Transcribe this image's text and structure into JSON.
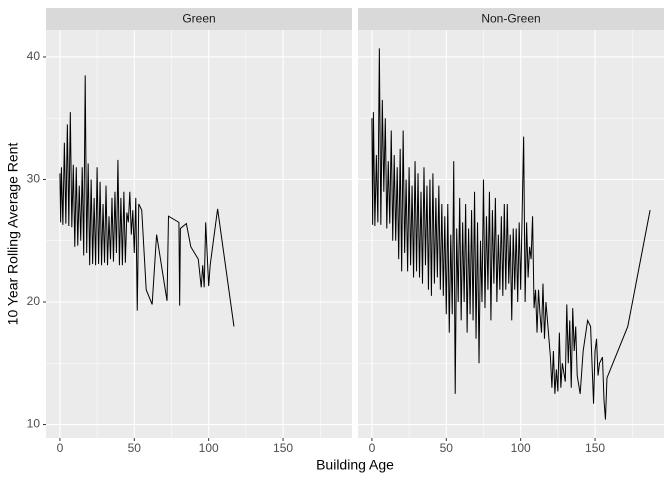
{
  "chart_data": {
    "type": "line",
    "x_label": "Building Age",
    "y_label": "10 Year Rolling Average Rent",
    "xlim": [
      -9.35,
      196.35
    ],
    "ylim": [
      8.9,
      42.2
    ],
    "xticks": [
      0,
      50,
      100,
      150
    ],
    "yticks": [
      10,
      20,
      30,
      40
    ],
    "x_minor_ticks": [
      25,
      75,
      125,
      175
    ],
    "y_minor_ticks": [
      15,
      25,
      35
    ],
    "grid": true,
    "color": "#000000",
    "panels": [
      {
        "title": "Green",
        "x": [
          0,
          0.5,
          1,
          2,
          3,
          4,
          5,
          6,
          7,
          8,
          9,
          10,
          11,
          12,
          13,
          14,
          15,
          16,
          17,
          18,
          19,
          20,
          21,
          22,
          23,
          24,
          25,
          26,
          27,
          28,
          29,
          30,
          31,
          32,
          33,
          34,
          35,
          36,
          37,
          38,
          39,
          40,
          41,
          42,
          43,
          44,
          45,
          46,
          47,
          48,
          49,
          50,
          51,
          52,
          53,
          55,
          58,
          62,
          65,
          72,
          73,
          80,
          80.5,
          81,
          85,
          88,
          93,
          95,
          96,
          97,
          98,
          100,
          101,
          106,
          117
        ],
        "values": [
          30.5,
          26.5,
          31,
          26.3,
          33,
          26.4,
          34.5,
          26.2,
          35.5,
          26.1,
          31.2,
          24.5,
          31,
          24.6,
          29.5,
          25,
          31,
          23.8,
          38.5,
          24,
          31.3,
          23,
          30,
          23.1,
          28.5,
          23,
          31,
          23.1,
          29.8,
          23,
          28,
          23.2,
          29.5,
          23,
          27,
          23.5,
          28.5,
          23.3,
          29,
          24,
          31.6,
          23,
          28.5,
          23,
          29,
          23.2,
          27.3,
          26.5,
          29,
          25.5,
          27.5,
          24,
          28.5,
          19.3,
          28,
          27.5,
          21,
          19.8,
          25.5,
          20.1,
          27,
          26.5,
          19.7,
          26,
          26.4,
          24.5,
          23.5,
          21.2,
          23,
          21.2,
          26.5,
          21.3,
          23,
          27.6,
          18
        ]
      },
      {
        "title": "Non-Green",
        "x": [
          0,
          0.5,
          1,
          2,
          3,
          4,
          5,
          6,
          7,
          8,
          9,
          10,
          11,
          12,
          13,
          14,
          15,
          16,
          17,
          18,
          19,
          20,
          21,
          22,
          23,
          24,
          25,
          26,
          27,
          28,
          29,
          30,
          31,
          32,
          33,
          34,
          35,
          36,
          37,
          38,
          39,
          40,
          41,
          42,
          43,
          44,
          45,
          46,
          47,
          48,
          49,
          50,
          51,
          52,
          53,
          54,
          55,
          56,
          57,
          58,
          59,
          60,
          61,
          62,
          63,
          64,
          65,
          66,
          67,
          68,
          69,
          70,
          71,
          72,
          73,
          74,
          75,
          76,
          77,
          78,
          79,
          80,
          81,
          82,
          83,
          84,
          85,
          86,
          87,
          88,
          89,
          90,
          91,
          92,
          93,
          94,
          95,
          96,
          97,
          98,
          99,
          100,
          102,
          103,
          104,
          105,
          106,
          107,
          108,
          109,
          110,
          111,
          112,
          113,
          114,
          115,
          116,
          117,
          120,
          121,
          122,
          123,
          124,
          125,
          126,
          127,
          128,
          130,
          131,
          132,
          133,
          134,
          135,
          136,
          137,
          138,
          140,
          142,
          145,
          147,
          149,
          150,
          151,
          152,
          153,
          155,
          156,
          157,
          158,
          172,
          187
        ],
        "values": [
          35,
          26.3,
          35.5,
          26.2,
          32,
          26.5,
          40.7,
          26.3,
          36.5,
          29,
          35,
          26,
          31.5,
          26.4,
          34,
          25,
          32,
          25,
          31,
          23.5,
          32.5,
          22.5,
          34,
          24,
          30,
          22.5,
          31,
          23,
          29.5,
          22,
          31.5,
          22.5,
          30.5,
          22,
          29,
          21.5,
          31,
          23,
          29.5,
          21,
          30,
          20.5,
          30.5,
          21.5,
          28.5,
          22,
          29.5,
          21,
          28,
          20.5,
          27,
          19,
          28,
          17.5,
          25.5,
          19,
          31.5,
          12.5,
          26,
          20,
          28.5,
          18.5,
          26.5,
          20,
          28,
          17.5,
          26,
          19,
          27.5,
          18.5,
          29,
          17,
          26.5,
          15,
          25,
          20,
          30,
          19.5,
          27,
          21,
          29,
          18.5,
          27.5,
          21.5,
          28.5,
          20,
          25.5,
          21,
          27,
          20.5,
          28,
          21,
          28,
          21.5,
          25.5,
          18.5,
          26,
          21,
          26,
          20,
          26.5,
          21,
          33.5,
          20,
          26.5,
          22,
          24.5,
          23.5,
          27,
          19.5,
          21,
          17.5,
          21,
          19,
          17.5,
          21.5,
          17,
          20,
          15.5,
          13,
          16,
          12.5,
          14.5,
          12.7,
          17.5,
          13,
          15,
          13.5,
          19.8,
          15,
          18.5,
          13,
          19.5,
          16,
          18,
          14,
          12.5,
          16,
          18.5,
          18,
          11.7,
          16,
          17,
          14,
          15,
          15.5,
          12,
          10.4,
          13.8,
          18,
          27.5
        ]
      }
    ]
  }
}
